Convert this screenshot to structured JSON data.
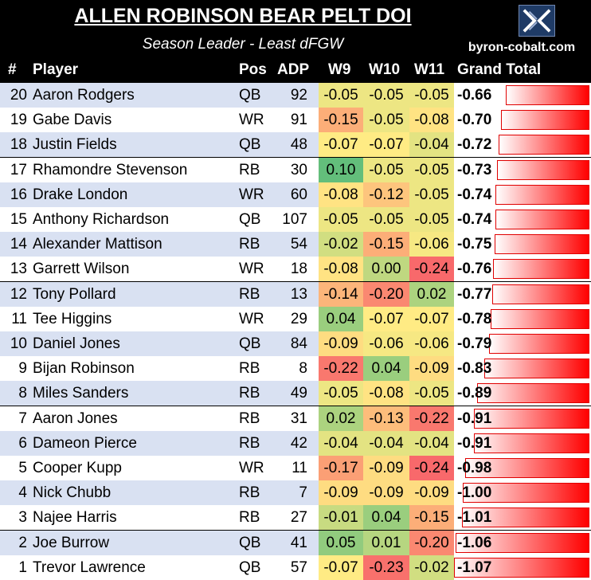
{
  "header": {
    "title": "ALLEN ROBINSON BEAR PELT DOI",
    "subtitle": "Season Leader - Least dFGW",
    "site": "byron-cobalt.com",
    "logo_icon": "kc-monogram-icon"
  },
  "columns": {
    "rank": "#",
    "player": "Player",
    "pos": "Pos",
    "adp": "ADP",
    "w9": "W9",
    "w10": "W10",
    "w11": "W11",
    "total": "Grand Total"
  },
  "colors": {
    "band_a": "#d9e1f2",
    "band_b": "#ffffff",
    "scale_low": "#f8696b",
    "scale_mid": "#ffeb84",
    "scale_high": "#63be7b",
    "bar": "#ff0000"
  },
  "chart_data": {
    "type": "table",
    "title": "ALLEN ROBINSON BEAR PELT DOI",
    "subtitle": "Season Leader - Least dFGW",
    "scale_min": -0.24,
    "scale_max": 0.1,
    "bar_axis": [
      0,
      -1.07
    ],
    "rows": [
      {
        "rank": "20",
        "player": "Aaron Rodgers",
        "pos": "QB",
        "adp": "92",
        "w9": "-0.05",
        "w10": "-0.05",
        "w11": "-0.05",
        "total": "-0.66"
      },
      {
        "rank": "19",
        "player": "Gabe Davis",
        "pos": "WR",
        "adp": "91",
        "w9": "-0.15",
        "w10": "-0.05",
        "w11": "-0.08",
        "total": "-0.70"
      },
      {
        "rank": "18",
        "player": "Justin Fields",
        "pos": "QB",
        "adp": "48",
        "w9": "-0.07",
        "w10": "-0.07",
        "w11": "-0.04",
        "total": "-0.72"
      },
      {
        "rank": "17",
        "player": "Rhamondre Stevenson",
        "pos": "RB",
        "adp": "30",
        "w9": "0.10",
        "w10": "-0.05",
        "w11": "-0.05",
        "total": "-0.73"
      },
      {
        "rank": "16",
        "player": "Drake London",
        "pos": "WR",
        "adp": "60",
        "w9": "-0.08",
        "w10": "-0.12",
        "w11": "-0.05",
        "total": "-0.74"
      },
      {
        "rank": "15",
        "player": "Anthony Richardson",
        "pos": "QB",
        "adp": "107",
        "w9": "-0.05",
        "w10": "-0.05",
        "w11": "-0.05",
        "total": "-0.74"
      },
      {
        "rank": "14",
        "player": "Alexander Mattison",
        "pos": "RB",
        "adp": "54",
        "w9": "-0.02",
        "w10": "-0.15",
        "w11": "-0.06",
        "total": "-0.75"
      },
      {
        "rank": "13",
        "player": "Garrett Wilson",
        "pos": "WR",
        "adp": "18",
        "w9": "-0.08",
        "w10": "0.00",
        "w11": "-0.24",
        "total": "-0.76"
      },
      {
        "rank": "12",
        "player": "Tony Pollard",
        "pos": "RB",
        "adp": "13",
        "w9": "-0.14",
        "w10": "-0.20",
        "w11": "0.02",
        "total": "-0.77"
      },
      {
        "rank": "11",
        "player": "Tee Higgins",
        "pos": "WR",
        "adp": "29",
        "w9": "0.04",
        "w10": "-0.07",
        "w11": "-0.07",
        "total": "-0.78"
      },
      {
        "rank": "10",
        "player": "Daniel Jones",
        "pos": "QB",
        "adp": "84",
        "w9": "-0.09",
        "w10": "-0.06",
        "w11": "-0.06",
        "total": "-0.79"
      },
      {
        "rank": "9",
        "player": "Bijan Robinson",
        "pos": "RB",
        "adp": "8",
        "w9": "-0.22",
        "w10": "0.04",
        "w11": "-0.09",
        "total": "-0.83"
      },
      {
        "rank": "8",
        "player": "Miles Sanders",
        "pos": "RB",
        "adp": "49",
        "w9": "-0.05",
        "w10": "-0.08",
        "w11": "-0.05",
        "total": "-0.89"
      },
      {
        "rank": "7",
        "player": "Aaron Jones",
        "pos": "RB",
        "adp": "31",
        "w9": "0.02",
        "w10": "-0.13",
        "w11": "-0.22",
        "total": "-0.91"
      },
      {
        "rank": "6",
        "player": "Dameon Pierce",
        "pos": "RB",
        "adp": "42",
        "w9": "-0.04",
        "w10": "-0.04",
        "w11": "-0.04",
        "total": "-0.91"
      },
      {
        "rank": "5",
        "player": "Cooper Kupp",
        "pos": "WR",
        "adp": "11",
        "w9": "-0.17",
        "w10": "-0.09",
        "w11": "-0.24",
        "total": "-0.98"
      },
      {
        "rank": "4",
        "player": "Nick Chubb",
        "pos": "RB",
        "adp": "7",
        "w9": "-0.09",
        "w10": "-0.09",
        "w11": "-0.09",
        "total": "-1.00"
      },
      {
        "rank": "3",
        "player": "Najee Harris",
        "pos": "RB",
        "adp": "27",
        "w9": "-0.01",
        "w10": "0.04",
        "w11": "-0.15",
        "total": "-1.01"
      },
      {
        "rank": "2",
        "player": "Joe Burrow",
        "pos": "QB",
        "adp": "41",
        "w9": "0.05",
        "w10": "0.01",
        "w11": "-0.20",
        "total": "-1.06"
      },
      {
        "rank": "1",
        "player": "Trevor Lawrence",
        "pos": "QB",
        "adp": "57",
        "w9": "-0.07",
        "w10": "-0.23",
        "w11": "-0.02",
        "total": "-1.07"
      }
    ]
  }
}
